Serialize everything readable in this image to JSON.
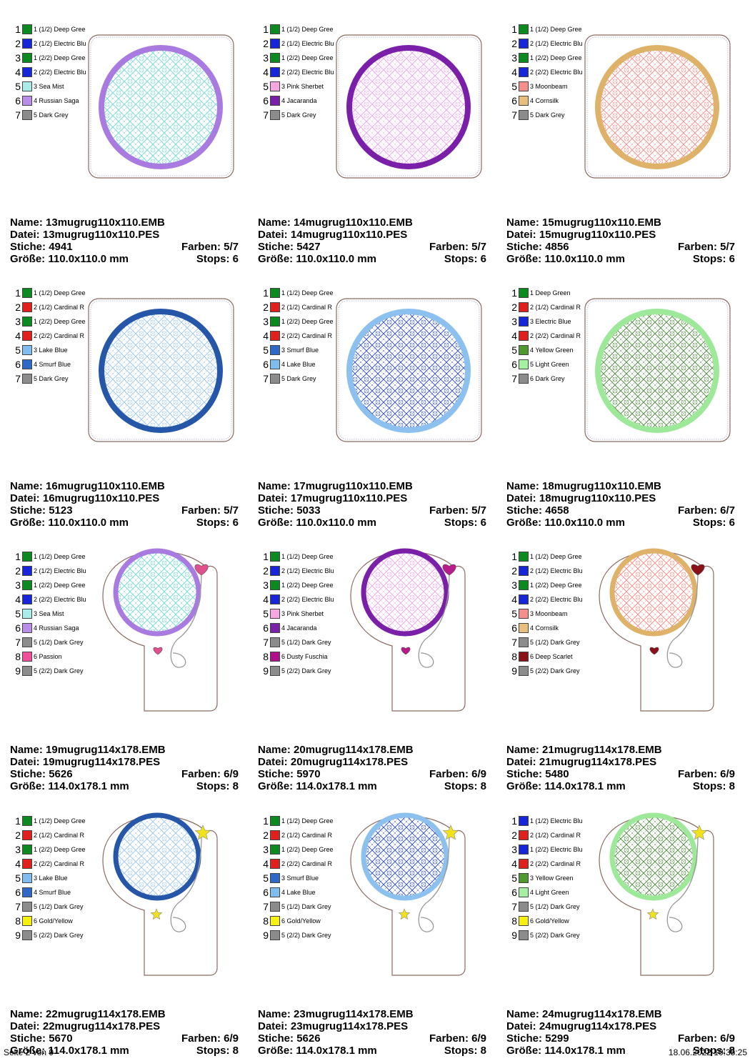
{
  "labels": {
    "name": "Name:",
    "file": "Datei:",
    "stitches": "Stiche:",
    "colors": "Farben:",
    "size": "Größe:",
    "stops": "Stops:"
  },
  "footer": {
    "page": "Seite 2 von 9",
    "datetime": "18.06.2022 10:35:25"
  },
  "designs": [
    {
      "name": "13mugrug110x110.EMB",
      "file": "13mugrug110x110.PES",
      "stitches": "4941",
      "colors": "5/7",
      "size": "110.0x110.0 mm",
      "stops": "6",
      "shape": "square",
      "ring": "#a97be0",
      "pattern": "#6fd6d0",
      "motif": "none",
      "motif_color": "",
      "thread_list": [
        {
          "num": "1",
          "name": "1 (1/2) Deep Gree",
          "color": "#0a8a1f"
        },
        {
          "num": "2",
          "name": "2 (1/2) Electric Blu",
          "color": "#1626d8"
        },
        {
          "num": "3",
          "name": "1 (2/2) Deep Gree",
          "color": "#0a8a1f"
        },
        {
          "num": "4",
          "name": "2 (2/2) Electric Blu",
          "color": "#1626d8"
        },
        {
          "num": "5",
          "name": "3 Sea Mist",
          "color": "#a9ece8"
        },
        {
          "num": "6",
          "name": "4 Russian Saga",
          "color": "#b98ee8"
        },
        {
          "num": "7",
          "name": "5 Dark Grey",
          "color": "#8c8c8c"
        }
      ]
    },
    {
      "name": "14mugrug110x110.EMB",
      "file": "14mugrug110x110.PES",
      "stitches": "5427",
      "colors": "5/7",
      "size": "110.0x110.0 mm",
      "stops": "6",
      "shape": "square",
      "ring": "#7a1fa8",
      "pattern": "#e9a4ec",
      "motif": "none",
      "motif_color": "",
      "thread_list": [
        {
          "num": "1",
          "name": "1 (1/2) Deep Gree",
          "color": "#0a8a1f"
        },
        {
          "num": "2",
          "name": "2 (1/2) Electric Blu",
          "color": "#1626d8"
        },
        {
          "num": "3",
          "name": "1 (2/2) Deep Gree",
          "color": "#0a8a1f"
        },
        {
          "num": "4",
          "name": "2 (2/2) Electric Blu",
          "color": "#1626d8"
        },
        {
          "num": "5",
          "name": "3 Pink Sherbet",
          "color": "#f7a7e0"
        },
        {
          "num": "6",
          "name": "4 Jacaranda",
          "color": "#7a1fa8"
        },
        {
          "num": "7",
          "name": "5 Dark Grey",
          "color": "#8c8c8c"
        }
      ]
    },
    {
      "name": "15mugrug110x110.EMB",
      "file": "15mugrug110x110.PES",
      "stitches": "4856",
      "colors": "5/7",
      "size": "110.0x110.0 mm",
      "stops": "6",
      "shape": "square",
      "ring": "#dfb26a",
      "pattern": "#ef8a86",
      "motif": "none",
      "motif_color": "",
      "thread_list": [
        {
          "num": "1",
          "name": "1 (1/2) Deep Gree",
          "color": "#0a8a1f"
        },
        {
          "num": "2",
          "name": "2 (1/2) Electric Blu",
          "color": "#1626d8"
        },
        {
          "num": "3",
          "name": "1 (2/2) Deep Gree",
          "color": "#0a8a1f"
        },
        {
          "num": "4",
          "name": "2 (2/2) Electric Blu",
          "color": "#1626d8"
        },
        {
          "num": "5",
          "name": "3 Moonbeam",
          "color": "#f48f8c"
        },
        {
          "num": "6",
          "name": "4 Cornsilk",
          "color": "#e8bf7c"
        },
        {
          "num": "7",
          "name": "5 Dark Grey",
          "color": "#8c8c8c"
        }
      ]
    },
    {
      "name": "16mugrug110x110.EMB",
      "file": "16mugrug110x110.PES",
      "stitches": "5123",
      "colors": "5/7",
      "size": "110.0x110.0 mm",
      "stops": "6",
      "shape": "square",
      "ring": "#2556a8",
      "pattern": "#9cc6ee",
      "motif": "none",
      "motif_color": "",
      "thread_list": [
        {
          "num": "1",
          "name": "1 (1/2) Deep Gree",
          "color": "#0a8a1f"
        },
        {
          "num": "2",
          "name": "2 (1/2) Cardinal R",
          "color": "#e0201c"
        },
        {
          "num": "3",
          "name": "1 (2/2) Deep Gree",
          "color": "#0a8a1f"
        },
        {
          "num": "4",
          "name": "2 (2/2) Cardinal R",
          "color": "#e0201c"
        },
        {
          "num": "5",
          "name": "3 Lake Blue",
          "color": "#7fbcf0"
        },
        {
          "num": "6",
          "name": "4 Smurf Blue",
          "color": "#2f69c8"
        },
        {
          "num": "7",
          "name": "5 Dark Grey",
          "color": "#8c8c8c"
        }
      ]
    },
    {
      "name": "17mugrug110x110.EMB",
      "file": "17mugrug110x110.PES",
      "stitches": "5033",
      "colors": "5/7",
      "size": "110.0x110.0 mm",
      "stops": "6",
      "shape": "square",
      "ring": "#8cc0ee",
      "pattern": "#2c4fb8",
      "motif": "none",
      "motif_color": "",
      "thread_list": [
        {
          "num": "1",
          "name": "1 (1/2) Deep Gree",
          "color": "#0a8a1f"
        },
        {
          "num": "2",
          "name": "2 (1/2) Cardinal R",
          "color": "#e0201c"
        },
        {
          "num": "3",
          "name": "1 (2/2) Deep Gree",
          "color": "#0a8a1f"
        },
        {
          "num": "4",
          "name": "2 (2/2) Cardinal R",
          "color": "#e0201c"
        },
        {
          "num": "5",
          "name": "3 Smurf Blue",
          "color": "#2f69c8"
        },
        {
          "num": "6",
          "name": "4 Lake Blue",
          "color": "#7fbcf0"
        },
        {
          "num": "7",
          "name": "5 Dark Grey",
          "color": "#8c8c8c"
        }
      ]
    },
    {
      "name": "18mugrug110x110.EMB",
      "file": "18mugrug110x110.PES",
      "stitches": "4658",
      "colors": "6/7",
      "size": "110.0x110.0 mm",
      "stops": "6",
      "shape": "square",
      "ring": "#9ee89a",
      "pattern": "#4a8a3a",
      "motif": "none",
      "motif_color": "",
      "thread_list": [
        {
          "num": "1",
          "name": "1 Deep Green",
          "color": "#0a8a1f"
        },
        {
          "num": "2",
          "name": "2 (1/2) Cardinal R",
          "color": "#e0201c"
        },
        {
          "num": "3",
          "name": "3 Electric Blue",
          "color": "#1626d8"
        },
        {
          "num": "4",
          "name": "2 (2/2) Cardinal R",
          "color": "#e0201c"
        },
        {
          "num": "5",
          "name": "4 Yellow Green",
          "color": "#4f9a2e"
        },
        {
          "num": "6",
          "name": "5 Light Green",
          "color": "#a6f0a2"
        },
        {
          "num": "7",
          "name": "6 Dark Grey",
          "color": "#8c8c8c"
        }
      ]
    },
    {
      "name": "19mugrug114x178.EMB",
      "file": "19mugrug114x178.PES",
      "stitches": "5626",
      "colors": "6/9",
      "size": "114.0x178.1 mm",
      "stops": "8",
      "shape": "tall",
      "ring": "#a97be0",
      "pattern": "#6fd6d0",
      "motif": "heart",
      "motif_color": "#e0508c",
      "thread_list": [
        {
          "num": "1",
          "name": "1 (1/2) Deep Gree",
          "color": "#0a8a1f"
        },
        {
          "num": "2",
          "name": "2 (1/2) Electric Blu",
          "color": "#1626d8"
        },
        {
          "num": "3",
          "name": "1 (2/2) Deep Gree",
          "color": "#0a8a1f"
        },
        {
          "num": "4",
          "name": "2 (2/2) Electric Blu",
          "color": "#1626d8"
        },
        {
          "num": "5",
          "name": "3 Sea Mist",
          "color": "#a9ece8"
        },
        {
          "num": "6",
          "name": "4 Russian Saga",
          "color": "#b98ee8"
        },
        {
          "num": "7",
          "name": "5 (1/2) Dark Grey",
          "color": "#8c8c8c"
        },
        {
          "num": "8",
          "name": "6 Passion",
          "color": "#f0509a"
        },
        {
          "num": "9",
          "name": "5 (2/2) Dark Grey",
          "color": "#8c8c8c"
        }
      ]
    },
    {
      "name": "20mugrug114x178.EMB",
      "file": "20mugrug114x178.PES",
      "stitches": "5970",
      "colors": "6/9",
      "size": "114.0x178.1 mm",
      "stops": "8",
      "shape": "tall",
      "ring": "#7a1fa8",
      "pattern": "#e9a4ec",
      "motif": "heart",
      "motif_color": "#b81c8a",
      "thread_list": [
        {
          "num": "1",
          "name": "1 (1/2) Deep Gree",
          "color": "#0a8a1f"
        },
        {
          "num": "2",
          "name": "2 (1/2) Electric Blu",
          "color": "#1626d8"
        },
        {
          "num": "3",
          "name": "1 (2/2) Deep Gree",
          "color": "#0a8a1f"
        },
        {
          "num": "4",
          "name": "2 (2/2) Electric Blu",
          "color": "#1626d8"
        },
        {
          "num": "5",
          "name": "3 Pink Sherbet",
          "color": "#f7a7e0"
        },
        {
          "num": "6",
          "name": "4 Jacaranda",
          "color": "#7a1fa8"
        },
        {
          "num": "7",
          "name": "5 (1/2) Dark Grey",
          "color": "#8c8c8c"
        },
        {
          "num": "8",
          "name": "6 Dusty Fuschia",
          "color": "#b0108c"
        },
        {
          "num": "9",
          "name": "5 (2/2) Dark Grey",
          "color": "#8c8c8c"
        }
      ]
    },
    {
      "name": "21mugrug114x178.EMB",
      "file": "21mugrug114x178.PES",
      "stitches": "5480",
      "colors": "6/9",
      "size": "114.0x178.1 mm",
      "stops": "8",
      "shape": "tall",
      "ring": "#dfb26a",
      "pattern": "#ef8a86",
      "motif": "heart",
      "motif_color": "#8c1018",
      "thread_list": [
        {
          "num": "1",
          "name": "1 (1/2) Deep Gree",
          "color": "#0a8a1f"
        },
        {
          "num": "2",
          "name": "2 (1/2) Electric Blu",
          "color": "#1626d8"
        },
        {
          "num": "3",
          "name": "1 (2/2) Deep Gree",
          "color": "#0a8a1f"
        },
        {
          "num": "4",
          "name": "2 (2/2) Electric Blu",
          "color": "#1626d8"
        },
        {
          "num": "5",
          "name": "3 Moonbeam",
          "color": "#f48f8c"
        },
        {
          "num": "6",
          "name": "4 Cornsilk",
          "color": "#e8bf7c"
        },
        {
          "num": "7",
          "name": "5 (1/2) Dark Grey",
          "color": "#8c8c8c"
        },
        {
          "num": "8",
          "name": "6 Deep Scarlet",
          "color": "#8c1018"
        },
        {
          "num": "9",
          "name": "5 (2/2) Dark Grey",
          "color": "#8c8c8c"
        }
      ]
    },
    {
      "name": "22mugrug114x178.EMB",
      "file": "22mugrug114x178.PES",
      "stitches": "5670",
      "colors": "6/9",
      "size": "114.0x178.1 mm",
      "stops": "8",
      "shape": "tall",
      "ring": "#2556a8",
      "pattern": "#9cc6ee",
      "motif": "star",
      "motif_color": "#f2e21c",
      "thread_list": [
        {
          "num": "1",
          "name": "1 (1/2) Deep Gree",
          "color": "#0a8a1f"
        },
        {
          "num": "2",
          "name": "2 (1/2) Cardinal R",
          "color": "#e0201c"
        },
        {
          "num": "3",
          "name": "1 (2/2) Deep Gree",
          "color": "#0a8a1f"
        },
        {
          "num": "4",
          "name": "2 (2/2) Cardinal R",
          "color": "#e0201c"
        },
        {
          "num": "5",
          "name": "3 Lake Blue",
          "color": "#7fbcf0"
        },
        {
          "num": "6",
          "name": "4 Smurf Blue",
          "color": "#2f69c8"
        },
        {
          "num": "7",
          "name": "5 (1/2) Dark Grey",
          "color": "#8c8c8c"
        },
        {
          "num": "8",
          "name": "6 Gold/Yellow",
          "color": "#f8f010"
        },
        {
          "num": "9",
          "name": "5 (2/2) Dark Grey",
          "color": "#8c8c8c"
        }
      ]
    },
    {
      "name": "23mugrug114x178.EMB",
      "file": "23mugrug114x178.PES",
      "stitches": "5626",
      "colors": "6/9",
      "size": "114.0x178.1 mm",
      "stops": "8",
      "shape": "tall",
      "ring": "#8cc0ee",
      "pattern": "#2c4fb8",
      "motif": "star",
      "motif_color": "#f2e21c",
      "thread_list": [
        {
          "num": "1",
          "name": "1 (1/2) Deep Gree",
          "color": "#0a8a1f"
        },
        {
          "num": "2",
          "name": "2 (1/2) Cardinal R",
          "color": "#e0201c"
        },
        {
          "num": "3",
          "name": "1 (2/2) Deep Gree",
          "color": "#0a8a1f"
        },
        {
          "num": "4",
          "name": "2 (2/2) Cardinal R",
          "color": "#e0201c"
        },
        {
          "num": "5",
          "name": "3 Smurf Blue",
          "color": "#2f69c8"
        },
        {
          "num": "6",
          "name": "4 Lake Blue",
          "color": "#7fbcf0"
        },
        {
          "num": "7",
          "name": "5 (1/2) Dark Grey",
          "color": "#8c8c8c"
        },
        {
          "num": "8",
          "name": "6 Gold/Yellow",
          "color": "#f8f010"
        },
        {
          "num": "9",
          "name": "5 (2/2) Dark Grey",
          "color": "#8c8c8c"
        }
      ]
    },
    {
      "name": "24mugrug114x178.EMB",
      "file": "24mugrug114x178.PES",
      "stitches": "5299",
      "colors": "6/9",
      "size": "114.0x178.1 mm",
      "stops": "8",
      "shape": "tall",
      "ring": "#9ee89a",
      "pattern": "#4a8a3a",
      "motif": "star",
      "motif_color": "#f2e21c",
      "thread_list": [
        {
          "num": "1",
          "name": "1 (1/2) Electric Blu",
          "color": "#1626d8"
        },
        {
          "num": "2",
          "name": "2 (1/2) Cardinal R",
          "color": "#e0201c"
        },
        {
          "num": "3",
          "name": "1 (2/2) Electric Blu",
          "color": "#1626d8"
        },
        {
          "num": "4",
          "name": "2 (2/2) Cardinal R",
          "color": "#e0201c"
        },
        {
          "num": "5",
          "name": "3 Yellow Green",
          "color": "#4f9a2e"
        },
        {
          "num": "6",
          "name": "4 Light Green",
          "color": "#a6f0a2"
        },
        {
          "num": "7",
          "name": "5 (1/2) Dark Grey",
          "color": "#8c8c8c"
        },
        {
          "num": "8",
          "name": "6 Gold/Yellow",
          "color": "#f8f010"
        },
        {
          "num": "9",
          "name": "5 (2/2) Dark Grey",
          "color": "#8c8c8c"
        }
      ]
    }
  ]
}
